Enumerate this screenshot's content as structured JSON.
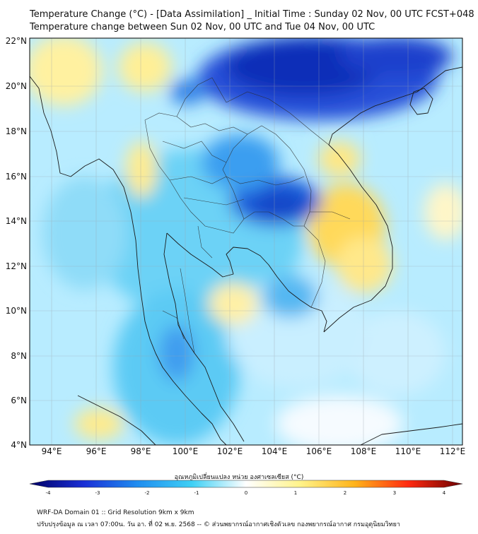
{
  "title": {
    "line1": "Temperature Change (°C) - [Data Assimilation] _ Initial Time : Sunday 02 Nov, 00 UTC FCST+048",
    "line2": "Temperature change between Sun 02 Nov, 00 UTC and Tue 04 Nov, 00 UTC"
  },
  "axes": {
    "lat_labels": [
      "22°N",
      "20°N",
      "18°N",
      "16°N",
      "14°N",
      "12°N",
      "10°N",
      "8°N",
      "6°N",
      "4°N"
    ],
    "lon_labels": [
      "94°E",
      "96°E",
      "98°E",
      "100°E",
      "102°E",
      "104°E",
      "106°E",
      "108°E",
      "110°E",
      "112°E"
    ]
  },
  "colorbar": {
    "title": "อุณหภูมิเปลี่ยนแปลง หน่วย องศาเซลเซียส (°C)",
    "ticks": [
      "-4",
      "-3",
      "-2",
      "-1",
      "0",
      "1",
      "2",
      "3",
      "4"
    ],
    "min": -4,
    "max": 4,
    "colors": {
      "neg4": "#000066",
      "neg3": "#1a2fd6",
      "neg2": "#1f8ef0",
      "neg1": "#3fd0f5",
      "zero": "#ffffff",
      "pos1": "#fff38a",
      "pos2": "#ffb41a",
      "pos3": "#ff2a10",
      "pos4": "#6a0000"
    }
  },
  "footer": {
    "line1": "WRF-DA Domain 01 :: Grid Resolution 9km x 9km",
    "line2": "ปรับปรุงข้อมูล ณ เวลา 07:00น. วัน อา. ที่ 02 พ.ย. 2568 -- © ส่วนพยากรณ์อากาศเชิงตัวเลข กองพยากรณ์อากาศ กรมอุตุนิยมวิทยา"
  },
  "colors": {
    "map_background": "#aee6ff",
    "cold_core": "#0a2ab0",
    "warm_patch": "#ffe06a",
    "coastline": "#1a1a1a"
  }
}
